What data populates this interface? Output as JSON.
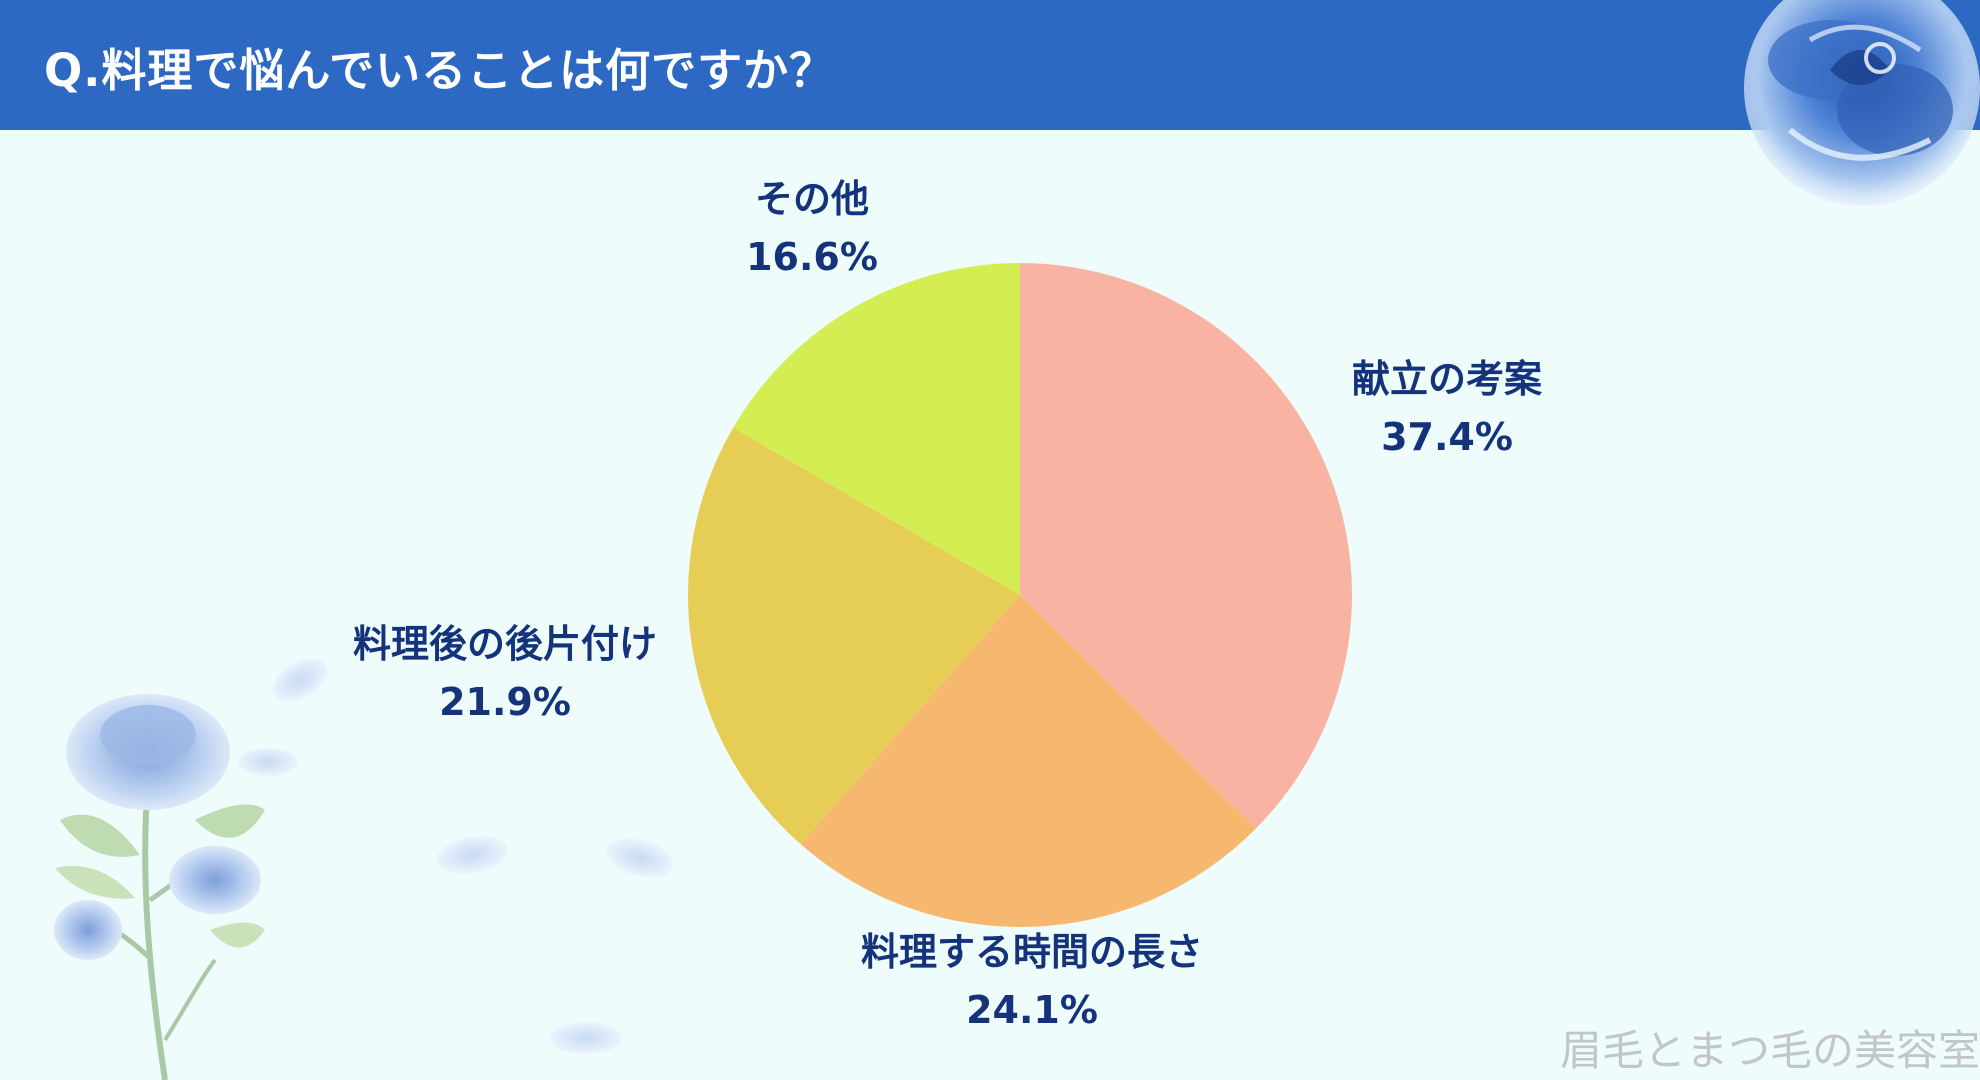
{
  "header": {
    "title": "Q.料理で悩んでいることは何ですか？"
  },
  "colors": {
    "header_bg": "#2d69c3",
    "page_bg": "#eefcfc",
    "label_text": "#14337a",
    "watermark_text": "#c2c6c8"
  },
  "watermark": "眉毛とまつ毛の美容室",
  "chart_data": {
    "type": "pie",
    "title": "Q.料理で悩んでいることは何ですか？",
    "start_angle": "12 o'clock",
    "direction": "clockwise",
    "slices": [
      {
        "label": "献立の考案",
        "value": 37.4,
        "value_text": "37.4%",
        "color": "#f8b3a3"
      },
      {
        "label": "料理する時間の長さ",
        "value": 24.1,
        "value_text": "24.1%",
        "color": "#f6b86e"
      },
      {
        "label": "料理後の後片付け",
        "value": 21.9,
        "value_text": "21.9%",
        "color": "#e6cd55"
      },
      {
        "label": "その他",
        "value": 16.6,
        "value_text": "16.6%",
        "color": "#d3ed53"
      }
    ],
    "legend": "none"
  }
}
